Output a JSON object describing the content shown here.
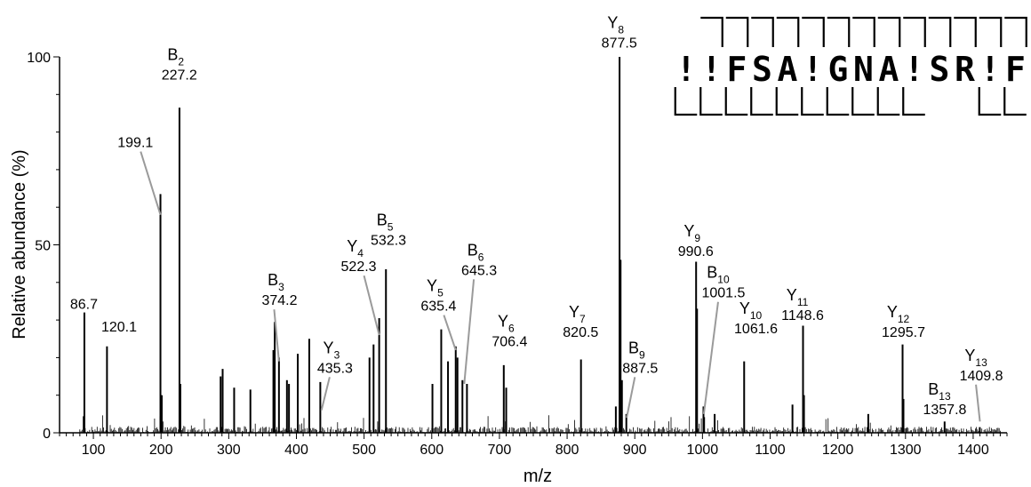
{
  "chart_data": {
    "type": "bar",
    "xlabel": "m/z",
    "ylabel": "Relative abundance (%)",
    "xlim": [
      50,
      1450
    ],
    "ylim": [
      0,
      100
    ],
    "x_ticks": [
      "100",
      "200",
      "300",
      "400",
      "500",
      "600",
      "700",
      "800",
      "900",
      "1000",
      "1100",
      "1200",
      "1300",
      "1400"
    ],
    "y_ticks": [
      "0",
      "50",
      "100"
    ],
    "colors": {
      "peaks": "#000000",
      "leader": "#9a9a9a"
    },
    "sequence": {
      "letters": [
        "!",
        "!",
        "F",
        "S",
        "A",
        "!",
        "G",
        "N",
        "A",
        "!",
        "S",
        "R",
        "!",
        "F"
      ],
      "top_brackets": [
        2,
        3,
        4,
        5,
        6,
        7,
        8,
        9,
        10,
        11,
        12,
        13,
        14
      ],
      "bottom_brackets": [
        1,
        2,
        3,
        4,
        5,
        6,
        7,
        8,
        9,
        10,
        13,
        14
      ]
    },
    "peaks": [
      {
        "mz": 86.7,
        "y": 32
      },
      {
        "mz": 120.1,
        "y": 23
      },
      {
        "mz": 199.1,
        "y": 63.5
      },
      {
        "mz": 201.0,
        "y": 10
      },
      {
        "mz": 227.2,
        "y": 86.5
      },
      {
        "mz": 228.5,
        "y": 13
      },
      {
        "mz": 288,
        "y": 15
      },
      {
        "mz": 291,
        "y": 17
      },
      {
        "mz": 308,
        "y": 12
      },
      {
        "mz": 332,
        "y": 11.5
      },
      {
        "mz": 366,
        "y": 22
      },
      {
        "mz": 368,
        "y": 29.5
      },
      {
        "mz": 374.2,
        "y": 20
      },
      {
        "mz": 386,
        "y": 14
      },
      {
        "mz": 389,
        "y": 13
      },
      {
        "mz": 402,
        "y": 21
      },
      {
        "mz": 419,
        "y": 25
      },
      {
        "mz": 435.3,
        "y": 13.5
      },
      {
        "mz": 508,
        "y": 20
      },
      {
        "mz": 514,
        "y": 23.5
      },
      {
        "mz": 522.3,
        "y": 30.5
      },
      {
        "mz": 532.3,
        "y": 43.5
      },
      {
        "mz": 601,
        "y": 13
      },
      {
        "mz": 614,
        "y": 27.5
      },
      {
        "mz": 624,
        "y": 19
      },
      {
        "mz": 635.4,
        "y": 23
      },
      {
        "mz": 638,
        "y": 20
      },
      {
        "mz": 645.3,
        "y": 14
      },
      {
        "mz": 652,
        "y": 13
      },
      {
        "mz": 706.4,
        "y": 18
      },
      {
        "mz": 710,
        "y": 12
      },
      {
        "mz": 820.5,
        "y": 19.5
      },
      {
        "mz": 872,
        "y": 7
      },
      {
        "mz": 877.5,
        "y": 100
      },
      {
        "mz": 879,
        "y": 46
      },
      {
        "mz": 881,
        "y": 14
      },
      {
        "mz": 887.5,
        "y": 5
      },
      {
        "mz": 990.6,
        "y": 45.5
      },
      {
        "mz": 992,
        "y": 33
      },
      {
        "mz": 1001.5,
        "y": 7
      },
      {
        "mz": 1018,
        "y": 5
      },
      {
        "mz": 1061.6,
        "y": 19
      },
      {
        "mz": 1133,
        "y": 7.5
      },
      {
        "mz": 1148.6,
        "y": 28.5
      },
      {
        "mz": 1150,
        "y": 10
      },
      {
        "mz": 1245,
        "y": 5
      },
      {
        "mz": 1295.7,
        "y": 23.5
      },
      {
        "mz": 1297,
        "y": 9
      },
      {
        "mz": 1357.8,
        "y": 3
      },
      {
        "mz": 1409.8,
        "y": 1.5
      }
    ],
    "annotations": [
      {
        "ion": "B",
        "sub": "2",
        "value": "227.2",
        "tx": 227,
        "ty": 94,
        "lead": false
      },
      {
        "ion": "",
        "sub": "",
        "value": "199.1",
        "tx": 162,
        "ty": 76,
        "lead": true,
        "lx": 199.1,
        "ly": 58
      },
      {
        "ion": "",
        "sub": "",
        "value": "86.7",
        "tx": 86,
        "ty": 33,
        "lead": false
      },
      {
        "ion": "",
        "sub": "",
        "value": "120.1",
        "tx": 138,
        "ty": 27,
        "lead": false
      },
      {
        "ion": "B",
        "sub": "3",
        "value": "374.2",
        "tx": 375,
        "ty": 34,
        "lead": true,
        "lx": 374.2,
        "ly": 19
      },
      {
        "ion": "Y",
        "sub": "3",
        "value": "435.3",
        "tx": 457,
        "ty": 16,
        "lead": true,
        "lx": 437,
        "ly": 6
      },
      {
        "ion": "Y",
        "sub": "4",
        "value": "522.3",
        "tx": 492,
        "ty": 43,
        "lead": true,
        "lx": 522.3,
        "ly": 26
      },
      {
        "ion": "B",
        "sub": "5",
        "value": "532.3",
        "tx": 536,
        "ty": 50,
        "lead": false
      },
      {
        "ion": "Y",
        "sub": "5",
        "value": "635.4",
        "tx": 610,
        "ty": 32.5,
        "lead": true,
        "lx": 635.4,
        "ly": 22
      },
      {
        "ion": "B",
        "sub": "6",
        "value": "645.3",
        "tx": 670,
        "ty": 42,
        "lead": true,
        "lx": 648,
        "ly": 13
      },
      {
        "ion": "Y",
        "sub": "6",
        "value": "706.4",
        "tx": 715,
        "ty": 23,
        "lead": false
      },
      {
        "ion": "Y",
        "sub": "7",
        "value": "820.5",
        "tx": 820,
        "ty": 25.5,
        "lead": false
      },
      {
        "ion": "Y",
        "sub": "8",
        "value": "877.5",
        "tx": 877,
        "ty": 102.5,
        "lead": false
      },
      {
        "ion": "B",
        "sub": "9",
        "value": "887.5",
        "tx": 908,
        "ty": 16,
        "lead": true,
        "lx": 888,
        "ly": 4
      },
      {
        "ion": "Y",
        "sub": "9",
        "value": "990.6",
        "tx": 990,
        "ty": 47,
        "lead": false
      },
      {
        "ion": "B",
        "sub": "10",
        "value": "1001.5",
        "tx": 1031,
        "ty": 36,
        "lead": true,
        "lx": 1002,
        "ly": 5
      },
      {
        "ion": "Y",
        "sub": "10",
        "value": "1061.6",
        "tx": 1079,
        "ty": 26.5,
        "lead": false
      },
      {
        "ion": "Y",
        "sub": "11",
        "value": "1148.6",
        "tx": 1148,
        "ty": 30,
        "lead": false
      },
      {
        "ion": "Y",
        "sub": "12",
        "value": "1295.7",
        "tx": 1297,
        "ty": 25.5,
        "lead": false
      },
      {
        "ion": "B",
        "sub": "13",
        "value": "1357.8",
        "tx": 1358,
        "ty": 5,
        "lead": false
      },
      {
        "ion": "Y",
        "sub": "13",
        "value": "1409.8",
        "tx": 1412,
        "ty": 14,
        "lead": true,
        "lx": 1410,
        "ly": 3
      }
    ]
  }
}
